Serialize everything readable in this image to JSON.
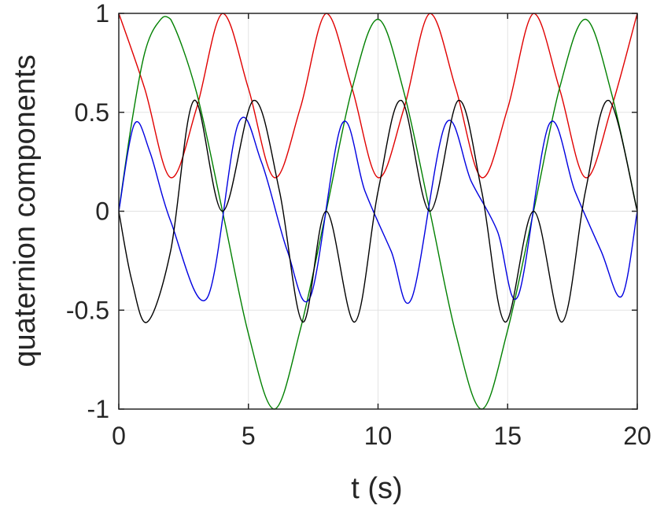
{
  "chart_data": {
    "type": "line",
    "title": "",
    "xlabel": "t (s)",
    "ylabel": "quaternion components",
    "xlim": [
      0,
      20
    ],
    "ylim": [
      -1,
      1
    ],
    "x_ticks": [
      0,
      5,
      10,
      15,
      20
    ],
    "y_ticks": [
      -1,
      -0.5,
      0,
      0.5,
      1
    ],
    "x_tick_labels": [
      "0",
      "5",
      "10",
      "15",
      "20"
    ],
    "y_tick_labels": [
      "-1",
      "-0.5",
      "0",
      "0.5",
      "1"
    ],
    "grid": true,
    "legend": "none",
    "series": [
      {
        "color": "#e00000",
        "x": [
          0,
          1,
          2,
          3,
          4,
          5,
          6,
          7,
          8,
          9,
          10,
          11,
          12,
          13,
          14,
          15,
          16,
          17,
          18,
          19,
          20
        ],
        "values": [
          1,
          0.62,
          0.17,
          0.52,
          1,
          0.62,
          0.17,
          0.52,
          1,
          0.62,
          0.17,
          0.52,
          1,
          0.62,
          0.17,
          0.52,
          1,
          0.62,
          0.17,
          0.52,
          1
        ]
      },
      {
        "color": "#008000",
        "x": [
          0,
          0.5,
          1,
          1.5,
          2,
          3,
          4,
          5,
          6,
          7,
          8,
          9,
          10,
          11,
          12,
          13,
          14,
          15,
          16,
          17,
          18,
          19,
          20
        ],
        "values": [
          0,
          0.45,
          0.8,
          0.95,
          0.97,
          0.6,
          0,
          -0.62,
          -1,
          -0.6,
          0,
          0.62,
          0.97,
          0.6,
          0,
          -0.62,
          -1,
          -0.6,
          0,
          0.62,
          0.97,
          0.6,
          0
        ]
      },
      {
        "color": "#0000e0",
        "x": [
          0,
          0.6,
          1.2,
          2,
          3.4,
          4.6,
          5.5,
          6.5,
          7.4,
          8.6,
          9.5,
          10.5,
          11.3,
          12.6,
          13.6,
          14.6,
          15.4,
          16.6,
          17.6,
          18.6,
          19.4,
          20
        ],
        "values": [
          0,
          0.44,
          0.3,
          -0.05,
          -0.44,
          0.44,
          0.25,
          -0.2,
          -0.43,
          0.44,
          0.1,
          -0.2,
          -0.44,
          0.44,
          0.15,
          -0.1,
          -0.43,
          0.44,
          0.1,
          -0.2,
          -0.43,
          0
        ]
      },
      {
        "color": "#000000",
        "x": [
          0,
          0.5,
          1.1,
          2,
          2.9,
          4,
          5.2,
          6.2,
          7.1,
          8,
          9.1,
          10,
          10.9,
          12,
          13.1,
          14,
          14.9,
          16,
          17.1,
          18,
          18.9,
          20
        ],
        "values": [
          0,
          -0.35,
          -0.56,
          -0.2,
          0.56,
          0,
          0.56,
          0.1,
          -0.56,
          0,
          -0.56,
          0.1,
          0.56,
          0,
          0.56,
          0.1,
          -0.56,
          0,
          -0.56,
          0.1,
          0.56,
          0
        ]
      }
    ]
  }
}
